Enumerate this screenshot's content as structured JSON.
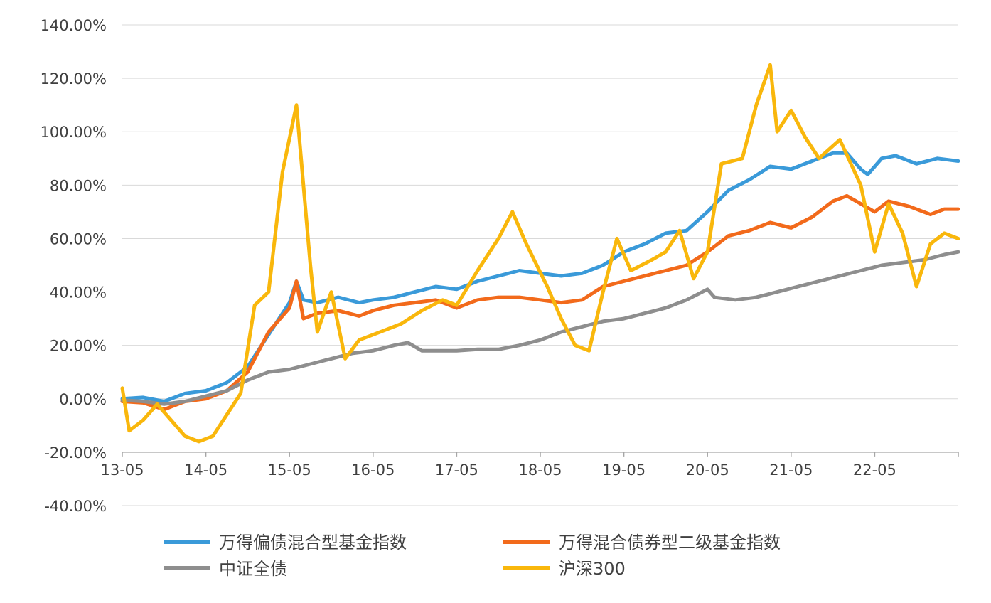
{
  "chart_data": {
    "type": "line",
    "title": "",
    "xlabel": "",
    "ylabel": "",
    "ylim": [
      -40,
      140
    ],
    "yticks": [
      "140.00%",
      "120.00%",
      "100.00%",
      "80.00%",
      "60.00%",
      "40.00%",
      "20.00%",
      "0.00%",
      "-20.00%",
      "-40.00%"
    ],
    "ytick_values": [
      140,
      120,
      100,
      80,
      60,
      40,
      20,
      0,
      -20,
      -40
    ],
    "x_axis_crosses_at": -20,
    "xlim": [
      "2013-05",
      "2023-05"
    ],
    "xticks": [
      "13-05",
      "14-05",
      "15-05",
      "16-05",
      "17-05",
      "18-05",
      "19-05",
      "20-05",
      "21-05",
      "22-05"
    ],
    "grid": true,
    "legend_position": "bottom",
    "series": [
      {
        "name": "万得偏债混合型基金指数",
        "color": "#3a9ad9",
        "points": [
          [
            "2013-05",
            0
          ],
          [
            "2013-08",
            0.5
          ],
          [
            "2013-11",
            -1
          ],
          [
            "2014-02",
            2
          ],
          [
            "2014-05",
            3
          ],
          [
            "2014-08",
            6
          ],
          [
            "2014-11",
            12
          ],
          [
            "2015-02",
            24
          ],
          [
            "2015-05",
            36
          ],
          [
            "2015-06",
            44
          ],
          [
            "2015-07",
            37
          ],
          [
            "2015-09",
            36
          ],
          [
            "2015-12",
            38
          ],
          [
            "2016-03",
            36
          ],
          [
            "2016-05",
            37
          ],
          [
            "2016-08",
            38
          ],
          [
            "2016-11",
            40
          ],
          [
            "2017-02",
            42
          ],
          [
            "2017-05",
            41
          ],
          [
            "2017-08",
            44
          ],
          [
            "2017-11",
            46
          ],
          [
            "2018-02",
            48
          ],
          [
            "2018-05",
            47
          ],
          [
            "2018-08",
            46
          ],
          [
            "2018-11",
            47
          ],
          [
            "2019-02",
            50
          ],
          [
            "2019-05",
            55
          ],
          [
            "2019-08",
            58
          ],
          [
            "2019-11",
            62
          ],
          [
            "2020-02",
            63
          ],
          [
            "2020-05",
            70
          ],
          [
            "2020-08",
            78
          ],
          [
            "2020-11",
            82
          ],
          [
            "2021-02",
            87
          ],
          [
            "2021-05",
            86
          ],
          [
            "2021-08",
            89
          ],
          [
            "2021-11",
            92
          ],
          [
            "2022-01",
            92
          ],
          [
            "2022-03",
            86
          ],
          [
            "2022-04",
            84
          ],
          [
            "2022-06",
            90
          ],
          [
            "2022-08",
            91
          ],
          [
            "2022-11",
            88
          ],
          [
            "2023-02",
            90
          ],
          [
            "2023-05",
            89
          ]
        ]
      },
      {
        "name": "万得混合债券型二级基金指数",
        "color": "#f26a1b",
        "points": [
          [
            "2013-05",
            -1
          ],
          [
            "2013-08",
            -1.5
          ],
          [
            "2013-11",
            -4
          ],
          [
            "2014-02",
            -1
          ],
          [
            "2014-05",
            0
          ],
          [
            "2014-08",
            3
          ],
          [
            "2014-11",
            10
          ],
          [
            "2015-02",
            25
          ],
          [
            "2015-05",
            34
          ],
          [
            "2015-06",
            44
          ],
          [
            "2015-07",
            30
          ],
          [
            "2015-09",
            32
          ],
          [
            "2015-12",
            33
          ],
          [
            "2016-03",
            31
          ],
          [
            "2016-05",
            33
          ],
          [
            "2016-08",
            35
          ],
          [
            "2016-11",
            36
          ],
          [
            "2017-02",
            37
          ],
          [
            "2017-05",
            34
          ],
          [
            "2017-08",
            37
          ],
          [
            "2017-11",
            38
          ],
          [
            "2018-02",
            38
          ],
          [
            "2018-05",
            37
          ],
          [
            "2018-08",
            36
          ],
          [
            "2018-11",
            37
          ],
          [
            "2019-02",
            42
          ],
          [
            "2019-05",
            44
          ],
          [
            "2019-08",
            46
          ],
          [
            "2019-11",
            48
          ],
          [
            "2020-02",
            50
          ],
          [
            "2020-05",
            55
          ],
          [
            "2020-08",
            61
          ],
          [
            "2020-11",
            63
          ],
          [
            "2021-02",
            66
          ],
          [
            "2021-05",
            64
          ],
          [
            "2021-08",
            68
          ],
          [
            "2021-11",
            74
          ],
          [
            "2022-01",
            76
          ],
          [
            "2022-03",
            73
          ],
          [
            "2022-05",
            70
          ],
          [
            "2022-07",
            74
          ],
          [
            "2022-10",
            72
          ],
          [
            "2023-01",
            69
          ],
          [
            "2023-03",
            71
          ],
          [
            "2023-05",
            71
          ]
        ]
      },
      {
        "name": "中证全债",
        "color": "#8e8e8e",
        "points": [
          [
            "2013-05",
            -0.5
          ],
          [
            "2013-08",
            -1
          ],
          [
            "2013-11",
            -2
          ],
          [
            "2014-02",
            -1
          ],
          [
            "2014-05",
            1
          ],
          [
            "2014-08",
            3
          ],
          [
            "2014-11",
            7
          ],
          [
            "2015-02",
            10
          ],
          [
            "2015-05",
            11
          ],
          [
            "2015-08",
            13
          ],
          [
            "2015-11",
            15
          ],
          [
            "2016-02",
            17
          ],
          [
            "2016-05",
            18
          ],
          [
            "2016-08",
            20
          ],
          [
            "2016-10",
            21
          ],
          [
            "2016-12",
            18
          ],
          [
            "2017-02",
            18
          ],
          [
            "2017-05",
            18
          ],
          [
            "2017-08",
            18.5
          ],
          [
            "2017-11",
            18.5
          ],
          [
            "2018-02",
            20
          ],
          [
            "2018-05",
            22
          ],
          [
            "2018-08",
            25
          ],
          [
            "2018-11",
            27
          ],
          [
            "2019-02",
            29
          ],
          [
            "2019-05",
            30
          ],
          [
            "2019-08",
            32
          ],
          [
            "2019-11",
            34
          ],
          [
            "2020-02",
            37
          ],
          [
            "2020-05",
            41
          ],
          [
            "2020-06",
            38
          ],
          [
            "2020-09",
            37
          ],
          [
            "2020-12",
            38
          ],
          [
            "2021-03",
            40
          ],
          [
            "2021-06",
            42
          ],
          [
            "2021-09",
            44
          ],
          [
            "2021-12",
            46
          ],
          [
            "2022-03",
            48
          ],
          [
            "2022-06",
            50
          ],
          [
            "2022-09",
            51
          ],
          [
            "2022-12",
            52
          ],
          [
            "2023-03",
            54
          ],
          [
            "2023-05",
            55
          ]
        ]
      },
      {
        "name": "沪深300",
        "color": "#f9b70c",
        "points": [
          [
            "2013-05",
            4
          ],
          [
            "2013-06",
            -12
          ],
          [
            "2013-08",
            -8
          ],
          [
            "2013-10",
            -2
          ],
          [
            "2013-12",
            -8
          ],
          [
            "2014-02",
            -14
          ],
          [
            "2014-04",
            -16
          ],
          [
            "2014-06",
            -14
          ],
          [
            "2014-08",
            -6
          ],
          [
            "2014-10",
            2
          ],
          [
            "2014-12",
            35
          ],
          [
            "2015-02",
            40
          ],
          [
            "2015-04",
            85
          ],
          [
            "2015-06",
            110
          ],
          [
            "2015-07",
            80
          ],
          [
            "2015-08",
            50
          ],
          [
            "2015-09",
            25
          ],
          [
            "2015-11",
            40
          ],
          [
            "2016-01",
            15
          ],
          [
            "2016-03",
            22
          ],
          [
            "2016-06",
            25
          ],
          [
            "2016-09",
            28
          ],
          [
            "2016-12",
            33
          ],
          [
            "2017-03",
            37
          ],
          [
            "2017-05",
            35
          ],
          [
            "2017-08",
            48
          ],
          [
            "2017-11",
            60
          ],
          [
            "2018-01",
            70
          ],
          [
            "2018-03",
            58
          ],
          [
            "2018-06",
            42
          ],
          [
            "2018-08",
            30
          ],
          [
            "2018-10",
            20
          ],
          [
            "2018-12",
            18
          ],
          [
            "2019-02",
            40
          ],
          [
            "2019-04",
            60
          ],
          [
            "2019-06",
            48
          ],
          [
            "2019-09",
            52
          ],
          [
            "2019-11",
            55
          ],
          [
            "2020-01",
            63
          ],
          [
            "2020-03",
            45
          ],
          [
            "2020-05",
            55
          ],
          [
            "2020-07",
            88
          ],
          [
            "2020-10",
            90
          ],
          [
            "2020-12",
            110
          ],
          [
            "2021-02",
            125
          ],
          [
            "2021-03",
            100
          ],
          [
            "2021-05",
            108
          ],
          [
            "2021-07",
            98
          ],
          [
            "2021-09",
            90
          ],
          [
            "2021-12",
            97
          ],
          [
            "2022-03",
            80
          ],
          [
            "2022-05",
            55
          ],
          [
            "2022-07",
            73
          ],
          [
            "2022-09",
            62
          ],
          [
            "2022-11",
            42
          ],
          [
            "2023-01",
            58
          ],
          [
            "2023-03",
            62
          ],
          [
            "2023-05",
            60
          ]
        ]
      }
    ]
  }
}
